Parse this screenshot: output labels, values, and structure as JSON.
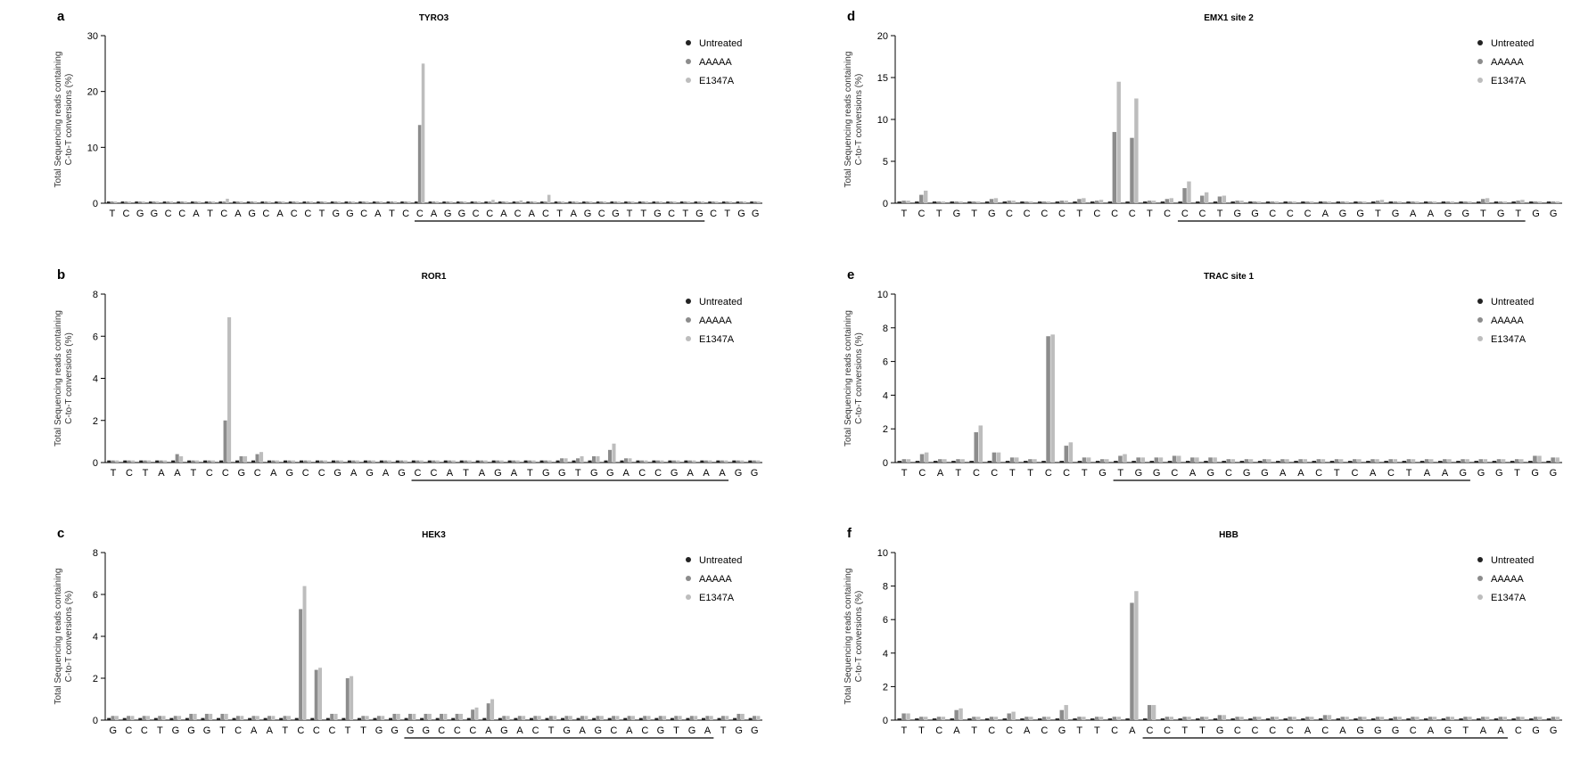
{
  "legend": [
    "Untreated",
    "AAAAA",
    "E1347A"
  ],
  "colors": {
    "Untreated": "#222222",
    "AAAAA": "#8c8c8c",
    "E1347A": "#bdbdbd"
  },
  "ylabel_line1": "Total Sequencing reads containing",
  "ylabel_line2": "C-to-T conversions (%)",
  "chart_data": [
    {
      "type": "bar",
      "panel": "a",
      "title": "TYRO3",
      "ylim": [
        0,
        30
      ],
      "yticks": [
        0,
        10,
        20,
        30
      ],
      "sequence": "TCGGCCATCAGCACCTGGCATCCAGGCCACACTAGCGTTGCTGCTGG",
      "underline": [
        22,
        42
      ],
      "series": [
        {
          "name": "Untreated",
          "values": [
            0.3,
            0.3,
            0.3,
            0.3,
            0.3,
            0.3,
            0.3,
            0.3,
            0.3,
            0.3,
            0.3,
            0.3,
            0.3,
            0.3,
            0.3,
            0.3,
            0.3,
            0.3,
            0.3,
            0.3,
            0.3,
            0.3,
            0.3,
            0.3,
            0.3,
            0.3,
            0.3,
            0.3,
            0.3,
            0.3,
            0.3,
            0.3,
            0.3,
            0.3,
            0.3,
            0.3,
            0.3,
            0.3,
            0.3,
            0.3,
            0.3,
            0.3,
            0.3,
            0.3,
            0.3,
            0.3,
            0.3
          ]
        },
        {
          "name": "AAAAA",
          "values": [
            0.3,
            0.3,
            0.3,
            0.3,
            0.3,
            0.3,
            0.3,
            0.3,
            0.3,
            0.3,
            0.3,
            0.3,
            0.3,
            0.3,
            0.3,
            0.3,
            0.3,
            0.3,
            0.3,
            0.3,
            0.3,
            0.3,
            14,
            0.3,
            0.3,
            0.3,
            0.3,
            0.3,
            0.3,
            0.3,
            0.3,
            0.3,
            0.3,
            0.3,
            0.3,
            0.3,
            0.3,
            0.3,
            0.3,
            0.3,
            0.3,
            0.3,
            0.3,
            0.3,
            0.3,
            0.3,
            0.3
          ]
        },
        {
          "name": "E1347A",
          "values": [
            0.3,
            0.3,
            0.3,
            0.3,
            0.3,
            0.3,
            0.3,
            0.3,
            0.8,
            0.3,
            0.3,
            0.3,
            0.3,
            0.3,
            0.3,
            0.3,
            0.3,
            0.3,
            0.3,
            0.3,
            0.3,
            0.3,
            25,
            0.3,
            0.3,
            0.3,
            0.3,
            0.6,
            0.3,
            0.5,
            0.3,
            1.5,
            0.3,
            0.3,
            0.3,
            0.3,
            0.3,
            0.3,
            0.3,
            0.3,
            0.3,
            0.3,
            0.3,
            0.3,
            0.3,
            0.3,
            0.3
          ]
        }
      ]
    },
    {
      "type": "bar",
      "panel": "b",
      "title": "ROR1",
      "ylim": [
        0,
        8
      ],
      "yticks": [
        0,
        2,
        4,
        6,
        8
      ],
      "sequence": "TCTAATCCGCAGCCGAGAGCCATAGATGGTGGACCGAAAGG",
      "underline": [
        19,
        38
      ],
      "series": [
        {
          "name": "Untreated",
          "values": [
            0.1,
            0.1,
            0.1,
            0.1,
            0.1,
            0.1,
            0.1,
            0.1,
            0.1,
            0.1,
            0.1,
            0.1,
            0.1,
            0.1,
            0.1,
            0.1,
            0.1,
            0.1,
            0.1,
            0.1,
            0.1,
            0.1,
            0.1,
            0.1,
            0.1,
            0.1,
            0.1,
            0.1,
            0.1,
            0.1,
            0.1,
            0.1,
            0.1,
            0.1,
            0.1,
            0.1,
            0.1,
            0.1,
            0.1,
            0.1,
            0.1
          ]
        },
        {
          "name": "AAAAA",
          "values": [
            0.1,
            0.1,
            0.1,
            0.1,
            0.4,
            0.1,
            0.1,
            2.0,
            0.3,
            0.4,
            0.1,
            0.1,
            0.1,
            0.1,
            0.1,
            0.1,
            0.1,
            0.1,
            0.1,
            0.1,
            0.1,
            0.1,
            0.1,
            0.1,
            0.1,
            0.1,
            0.1,
            0.1,
            0.2,
            0.2,
            0.3,
            0.6,
            0.2,
            0.1,
            0.1,
            0.1,
            0.1,
            0.1,
            0.1,
            0.1,
            0.1
          ]
        },
        {
          "name": "E1347A",
          "values": [
            0.1,
            0.1,
            0.1,
            0.1,
            0.3,
            0.1,
            0.1,
            6.9,
            0.3,
            0.5,
            0.1,
            0.1,
            0.1,
            0.1,
            0.1,
            0.1,
            0.1,
            0.1,
            0.1,
            0.1,
            0.1,
            0.1,
            0.1,
            0.1,
            0.1,
            0.1,
            0.1,
            0.1,
            0.2,
            0.3,
            0.3,
            0.9,
            0.2,
            0.1,
            0.1,
            0.1,
            0.1,
            0.1,
            0.1,
            0.1,
            0.1
          ]
        }
      ]
    },
    {
      "type": "bar",
      "panel": "c",
      "title": "HEK3",
      "ylim": [
        0,
        8
      ],
      "yticks": [
        0,
        2,
        4,
        6,
        8
      ],
      "sequence": "GCCTGGGTCAATCCCTTGGGGCCCAGACTGAGCACGTGATGG",
      "underline": [
        19,
        38
      ],
      "series": [
        {
          "name": "Untreated",
          "values": [
            0.1,
            0.1,
            0.1,
            0.1,
            0.1,
            0.1,
            0.1,
            0.1,
            0.1,
            0.1,
            0.1,
            0.1,
            0.1,
            0.1,
            0.1,
            0.1,
            0.1,
            0.1,
            0.1,
            0.1,
            0.1,
            0.1,
            0.1,
            0.1,
            0.1,
            0.1,
            0.1,
            0.1,
            0.1,
            0.1,
            0.1,
            0.1,
            0.1,
            0.1,
            0.1,
            0.1,
            0.1,
            0.1,
            0.1,
            0.1,
            0.1,
            0.1
          ]
        },
        {
          "name": "AAAAA",
          "values": [
            0.2,
            0.2,
            0.2,
            0.2,
            0.2,
            0.3,
            0.3,
            0.3,
            0.2,
            0.2,
            0.2,
            0.2,
            5.3,
            2.4,
            0.3,
            2.0,
            0.2,
            0.2,
            0.3,
            0.3,
            0.3,
            0.3,
            0.3,
            0.5,
            0.8,
            0.2,
            0.2,
            0.2,
            0.2,
            0.2,
            0.2,
            0.2,
            0.2,
            0.2,
            0.2,
            0.2,
            0.2,
            0.2,
            0.2,
            0.2,
            0.3,
            0.2
          ]
        },
        {
          "name": "E1347A",
          "values": [
            0.2,
            0.2,
            0.2,
            0.2,
            0.2,
            0.3,
            0.3,
            0.3,
            0.2,
            0.2,
            0.2,
            0.2,
            6.4,
            2.5,
            0.3,
            2.1,
            0.2,
            0.2,
            0.3,
            0.3,
            0.3,
            0.3,
            0.3,
            0.6,
            1.0,
            0.2,
            0.2,
            0.2,
            0.2,
            0.2,
            0.2,
            0.2,
            0.2,
            0.2,
            0.2,
            0.2,
            0.2,
            0.2,
            0.2,
            0.2,
            0.3,
            0.2
          ]
        }
      ]
    },
    {
      "type": "bar",
      "panel": "d",
      "title": "EMX1 site 2",
      "ylim": [
        0,
        20
      ],
      "yticks": [
        0,
        5,
        10,
        15,
        20
      ],
      "sequence": "TCTGTGCCCCTCCCTCCCTGGCCCAGGTGAAGGTGTGG",
      "underline": [
        16,
        35
      ],
      "series": [
        {
          "name": "Untreated",
          "values": [
            0.2,
            0.2,
            0.2,
            0.2,
            0.2,
            0.2,
            0.2,
            0.2,
            0.2,
            0.2,
            0.2,
            0.2,
            0.2,
            0.2,
            0.2,
            0.2,
            0.2,
            0.2,
            0.2,
            0.2,
            0.2,
            0.2,
            0.2,
            0.2,
            0.2,
            0.2,
            0.2,
            0.2,
            0.2,
            0.2,
            0.2,
            0.2,
            0.2,
            0.2,
            0.2,
            0.2,
            0.2,
            0.2
          ]
        },
        {
          "name": "AAAAA",
          "values": [
            0.3,
            1.0,
            0.2,
            0.2,
            0.2,
            0.5,
            0.3,
            0.2,
            0.2,
            0.3,
            0.5,
            0.3,
            8.5,
            7.8,
            0.3,
            0.5,
            1.8,
            0.9,
            0.8,
            0.3,
            0.2,
            0.2,
            0.2,
            0.2,
            0.2,
            0.2,
            0.2,
            0.3,
            0.2,
            0.2,
            0.2,
            0.2,
            0.2,
            0.5,
            0.2,
            0.3,
            0.2,
            0.2
          ]
        },
        {
          "name": "E1347A",
          "values": [
            0.3,
            1.5,
            0.2,
            0.2,
            0.2,
            0.6,
            0.3,
            0.2,
            0.2,
            0.3,
            0.6,
            0.4,
            14.5,
            12.5,
            0.3,
            0.6,
            2.6,
            1.3,
            0.9,
            0.3,
            0.2,
            0.2,
            0.2,
            0.2,
            0.2,
            0.2,
            0.2,
            0.4,
            0.2,
            0.2,
            0.2,
            0.2,
            0.2,
            0.6,
            0.2,
            0.4,
            0.2,
            0.2
          ]
        }
      ]
    },
    {
      "type": "bar",
      "panel": "e",
      "title": "TRAC site 1",
      "ylim": [
        0,
        10
      ],
      "yticks": [
        0,
        2,
        4,
        6,
        8,
        10
      ],
      "sequence": "TCATCCTTCCTGTGGCAGCGGAACTCACTAAGGGTGG",
      "underline": [
        12,
        31
      ],
      "series": [
        {
          "name": "Untreated",
          "values": [
            0.1,
            0.1,
            0.1,
            0.1,
            0.1,
            0.1,
            0.1,
            0.1,
            0.1,
            0.1,
            0.1,
            0.1,
            0.1,
            0.1,
            0.1,
            0.1,
            0.1,
            0.1,
            0.1,
            0.1,
            0.1,
            0.1,
            0.1,
            0.1,
            0.1,
            0.1,
            0.1,
            0.1,
            0.1,
            0.1,
            0.1,
            0.1,
            0.1,
            0.1,
            0.1,
            0.1,
            0.1
          ]
        },
        {
          "name": "AAAAA",
          "values": [
            0.2,
            0.5,
            0.2,
            0.2,
            1.8,
            0.6,
            0.3,
            0.2,
            7.5,
            1.0,
            0.3,
            0.2,
            0.4,
            0.3,
            0.3,
            0.4,
            0.3,
            0.3,
            0.2,
            0.2,
            0.2,
            0.2,
            0.2,
            0.2,
            0.2,
            0.2,
            0.2,
            0.2,
            0.2,
            0.2,
            0.2,
            0.2,
            0.2,
            0.2,
            0.2,
            0.4,
            0.3
          ]
        },
        {
          "name": "E1347A",
          "values": [
            0.2,
            0.6,
            0.2,
            0.2,
            2.2,
            0.6,
            0.3,
            0.2,
            7.6,
            1.2,
            0.3,
            0.2,
            0.5,
            0.3,
            0.3,
            0.4,
            0.3,
            0.3,
            0.2,
            0.2,
            0.2,
            0.2,
            0.2,
            0.2,
            0.2,
            0.2,
            0.2,
            0.2,
            0.2,
            0.2,
            0.2,
            0.2,
            0.2,
            0.2,
            0.2,
            0.4,
            0.3
          ]
        }
      ]
    },
    {
      "type": "bar",
      "panel": "f",
      "title": "HBB",
      "ylim": [
        0,
        10
      ],
      "yticks": [
        0,
        2,
        4,
        6,
        8,
        10
      ],
      "sequence": "TTCATCCACGTTCACCTTGCCCCACAGGGCAGTAACGG",
      "underline": [
        14,
        34
      ],
      "series": [
        {
          "name": "Untreated",
          "values": [
            0.1,
            0.1,
            0.1,
            0.1,
            0.1,
            0.1,
            0.1,
            0.1,
            0.1,
            0.1,
            0.1,
            0.1,
            0.1,
            0.1,
            0.1,
            0.1,
            0.1,
            0.1,
            0.1,
            0.1,
            0.1,
            0.1,
            0.1,
            0.1,
            0.1,
            0.1,
            0.1,
            0.1,
            0.1,
            0.1,
            0.1,
            0.1,
            0.1,
            0.1,
            0.1,
            0.1,
            0.1,
            0.1
          ]
        },
        {
          "name": "AAAAA",
          "values": [
            0.4,
            0.2,
            0.2,
            0.6,
            0.2,
            0.2,
            0.4,
            0.2,
            0.2,
            0.6,
            0.2,
            0.2,
            0.2,
            7.0,
            0.9,
            0.2,
            0.2,
            0.2,
            0.3,
            0.2,
            0.2,
            0.2,
            0.2,
            0.2,
            0.3,
            0.2,
            0.2,
            0.2,
            0.2,
            0.2,
            0.2,
            0.2,
            0.2,
            0.2,
            0.2,
            0.2,
            0.2,
            0.2
          ]
        },
        {
          "name": "E1347A",
          "values": [
            0.4,
            0.2,
            0.2,
            0.7,
            0.2,
            0.2,
            0.5,
            0.2,
            0.2,
            0.9,
            0.2,
            0.2,
            0.2,
            7.7,
            0.9,
            0.2,
            0.2,
            0.2,
            0.3,
            0.2,
            0.2,
            0.2,
            0.2,
            0.2,
            0.3,
            0.2,
            0.2,
            0.2,
            0.2,
            0.2,
            0.2,
            0.2,
            0.2,
            0.2,
            0.2,
            0.2,
            0.2,
            0.2
          ]
        }
      ]
    }
  ]
}
